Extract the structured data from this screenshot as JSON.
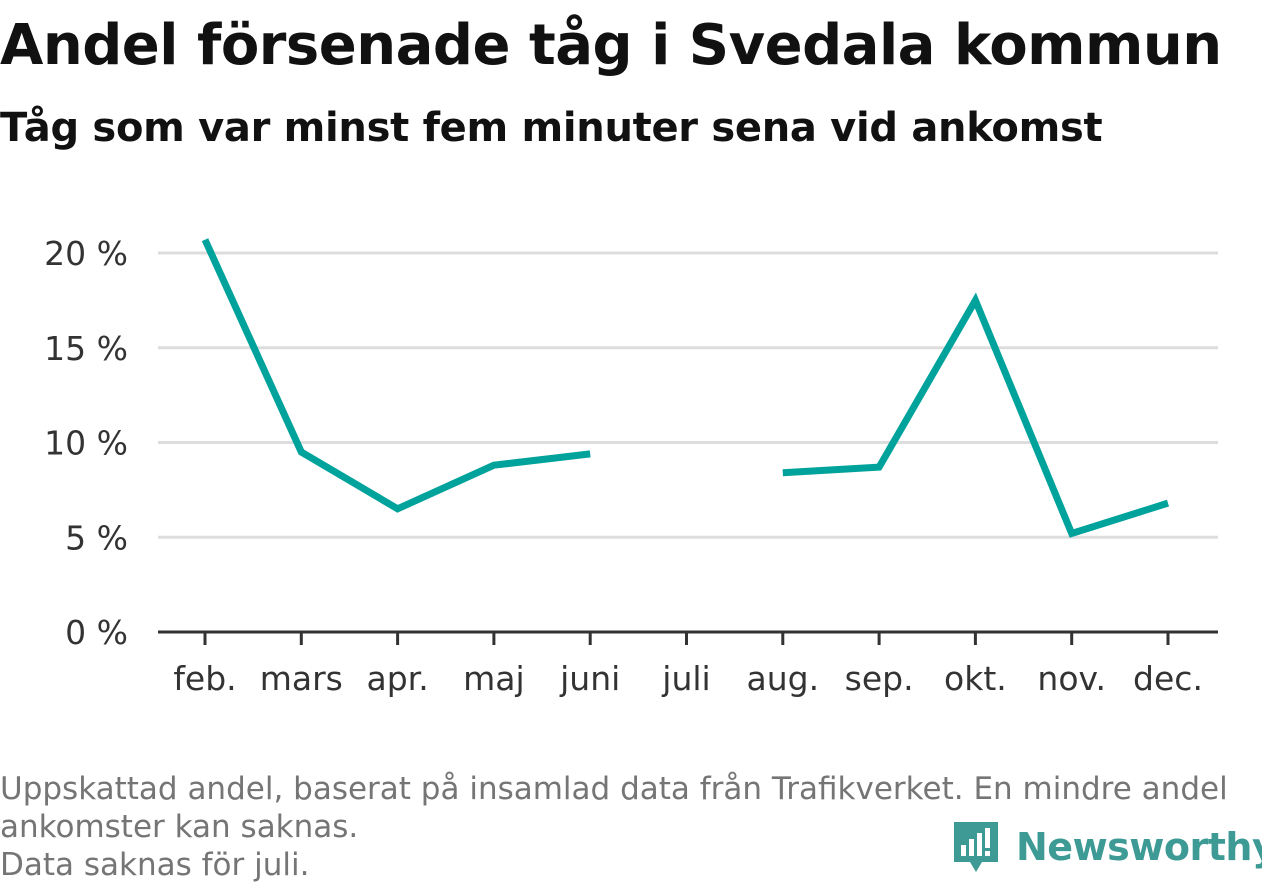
{
  "title": "Andel försenade tåg i Svedala kommun",
  "subtitle": "Tåg som var minst fem minuter sena vid ankomst",
  "footnote": {
    "line1": "Uppskattad andel, baserat på insamlad data från Trafikverket. En mindre andel ankomster kan saknas.",
    "line2": "Data saknas för juli."
  },
  "brand": {
    "name": "Newsworthy",
    "icon": "newsworthy-logo-icon",
    "color": "#3d9a94"
  },
  "colors": {
    "line": "#00a39b",
    "grid": "#dddddd",
    "axis": "#333333",
    "text": "#333333"
  },
  "chart_data": {
    "type": "line",
    "categories": [
      "feb.",
      "mars",
      "apr.",
      "maj",
      "juni",
      "juli",
      "aug.",
      "sep.",
      "okt.",
      "nov.",
      "dec."
    ],
    "series": [
      {
        "values": [
          20.7,
          9.5,
          6.5,
          8.8,
          9.4,
          null,
          8.4,
          8.7,
          17.5,
          5.2,
          6.8
        ]
      }
    ],
    "ylim": [
      0,
      20
    ],
    "yticks": [
      0,
      5,
      10,
      15,
      20
    ],
    "ytick_labels": [
      "0 %",
      "5 %",
      "10 %",
      "15 %",
      "20 %"
    ],
    "grid": true,
    "legend": "none"
  }
}
